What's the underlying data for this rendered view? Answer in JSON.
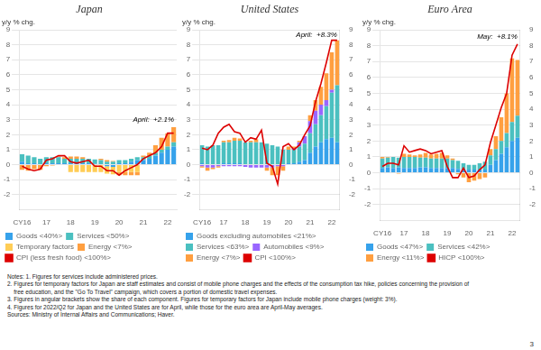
{
  "chart_data": [
    {
      "type": "bar",
      "stacked": true,
      "title": "Japan",
      "y_label": "y/y % chg.",
      "annotation": "April:  +2.1%",
      "categories": [
        "CY16",
        null,
        null,
        null,
        "17",
        null,
        null,
        null,
        "18",
        null,
        null,
        null,
        "19",
        null,
        null,
        null,
        "20",
        null,
        null,
        null,
        "21",
        null,
        null,
        null,
        "22",
        null
      ],
      "ylim": [
        -3,
        9
      ],
      "yticks": [
        -2,
        -1,
        0,
        1,
        2,
        3,
        4,
        5,
        6,
        7,
        8,
        9
      ],
      "grid": true,
      "legend": "bottom",
      "series": [
        {
          "name": "Goods <40%>",
          "color": "#36a2eb",
          "values": [
            0.2,
            0.1,
            0.1,
            0.0,
            0.1,
            0.1,
            0.1,
            0.1,
            0.1,
            0.1,
            0.1,
            0.1,
            0.05,
            0.0,
            -0.1,
            -0.15,
            0.1,
            0.1,
            0.2,
            0.3,
            0.3,
            0.4,
            0.6,
            0.8,
            1.0,
            1.2
          ]
        },
        {
          "name": "Services <50%>",
          "color": "#4bc0c0",
          "values": [
            0.5,
            0.5,
            0.4,
            0.4,
            0.4,
            0.4,
            0.4,
            0.3,
            0.3,
            0.3,
            0.3,
            0.3,
            0.3,
            0.3,
            0.2,
            0.2,
            0.2,
            0.2,
            0.2,
            0.2,
            0.2,
            0.2,
            0.2,
            0.2,
            0.2,
            0.3
          ]
        },
        {
          "name": "Temporary factors",
          "color": "#ffcd56",
          "values": [
            0.0,
            0.0,
            0.0,
            0.0,
            0.0,
            0.0,
            0.0,
            0.0,
            -0.5,
            -0.5,
            -0.5,
            -0.5,
            -0.5,
            -0.5,
            -0.5,
            -0.5,
            -0.5,
            -0.5,
            -0.5,
            -0.5,
            0.0,
            0.0,
            0.0,
            0.0,
            0.0,
            0.0
          ]
        },
        {
          "name": "Energy <7%>",
          "color": "#ff9f40",
          "values": [
            -0.35,
            -0.4,
            -0.3,
            -0.35,
            -0.1,
            -0.05,
            0.05,
            0.1,
            0.15,
            0.15,
            0.1,
            0.0,
            0.0,
            0.1,
            0.1,
            0.05,
            -0.2,
            -0.2,
            -0.2,
            -0.2,
            0.1,
            0.2,
            0.5,
            0.8,
            0.9,
            1.0
          ]
        },
        {
          "name": "CPI (less fresh food) <100%>",
          "type": "line",
          "color": "#dd0000",
          "values": [
            -0.1,
            -0.3,
            -0.4,
            -0.3,
            0.3,
            0.4,
            0.6,
            0.6,
            0.2,
            0.1,
            0.2,
            0.3,
            -0.1,
            -0.1,
            -0.4,
            -0.4,
            -0.7,
            -0.4,
            -0.2,
            0.0,
            0.4,
            0.6,
            0.8,
            1.2,
            2.1,
            2.1
          ]
        }
      ]
    },
    {
      "type": "bar",
      "stacked": true,
      "title": "United States",
      "y_label": "y/y % chg.",
      "annotation": "April:  +8.3%",
      "categories": [
        "CY16",
        null,
        null,
        null,
        "17",
        null,
        null,
        null,
        "18",
        null,
        null,
        null,
        "19",
        null,
        null,
        null,
        "20",
        null,
        null,
        null,
        "21",
        null,
        null,
        null,
        "22",
        null
      ],
      "ylim": [
        -3,
        9
      ],
      "yticks": [
        -2,
        -1,
        0,
        1,
        2,
        3,
        4,
        5,
        6,
        7,
        8,
        9
      ],
      "y2lim": [
        -3,
        9
      ],
      "y2ticks": [
        -2,
        -1,
        0,
        1,
        2,
        3,
        4,
        5,
        6,
        7,
        8,
        9
      ],
      "grid": true,
      "legend": "bottom",
      "series": [
        {
          "name": "Goods excluding automobiles\n<21%>",
          "color": "#36a2eb",
          "values": [
            0.1,
            0.0,
            0.0,
            0.0,
            0.1,
            0.1,
            0.1,
            0.1,
            0.0,
            0.0,
            0.0,
            0.0,
            0.0,
            0.0,
            0.0,
            0.0,
            0.1,
            0.1,
            0.2,
            0.3,
            0.8,
            1.2,
            1.5,
            1.7,
            1.8,
            1.5
          ]
        },
        {
          "name": "Services <63%>",
          "color": "#4bc0c0",
          "values": [
            1.2,
            1.2,
            1.3,
            1.3,
            1.4,
            1.4,
            1.5,
            1.5,
            1.5,
            1.5,
            1.5,
            1.5,
            1.4,
            1.3,
            1.2,
            1.0,
            0.9,
            0.9,
            1.0,
            1.1,
            1.3,
            1.5,
            1.8,
            2.2,
            3.0,
            3.8
          ]
        },
        {
          "name": "Automobiles <9%>",
          "color": "#9966ff",
          "values": [
            -0.1,
            -0.2,
            -0.2,
            -0.1,
            -0.1,
            -0.1,
            -0.1,
            -0.1,
            -0.15,
            -0.2,
            -0.2,
            -0.2,
            -0.2,
            -0.2,
            -0.1,
            -0.1,
            0.0,
            0.1,
            0.3,
            0.5,
            0.8,
            0.9,
            0.7,
            0.4,
            0.2,
            0.0
          ]
        },
        {
          "name": "Energy <7%>",
          "color": "#ff9f40",
          "values": [
            -0.1,
            -0.2,
            -0.1,
            -0.1,
            0.1,
            0.15,
            0.2,
            0.15,
            0.0,
            0.1,
            0.2,
            0.0,
            -0.2,
            -0.5,
            -0.6,
            -0.3,
            0.2,
            0.1,
            0.1,
            0.0,
            0.4,
            0.7,
            1.2,
            1.8,
            2.5,
            3.0
          ]
        },
        {
          "name": "CPI <100%>",
          "type": "line",
          "color": "#dd0000",
          "values": [
            1.1,
            1.0,
            1.3,
            2.1,
            2.5,
            2.7,
            2.2,
            2.1,
            1.5,
            1.8,
            1.7,
            2.3,
            0.1,
            -0.1,
            -1.3,
            1.2,
            1.4,
            1.0,
            1.3,
            2.0,
            2.6,
            4.2,
            5.4,
            6.8,
            8.3,
            8.3
          ]
        }
      ]
    },
    {
      "type": "bar",
      "stacked": true,
      "title": "Euro Area",
      "y_label": "y/y % chg.",
      "annotation": "May:  +8.1%",
      "categories": [
        "CY16",
        null,
        null,
        null,
        "17",
        null,
        null,
        null,
        "18",
        null,
        null,
        null,
        "19",
        null,
        null,
        null,
        "20",
        null,
        null,
        null,
        "21",
        null,
        null,
        null,
        "22",
        null
      ],
      "ylim": [
        -3,
        9
      ],
      "yticks": [
        -2,
        -1,
        0,
        1,
        2,
        3,
        4,
        5,
        6,
        7,
        8,
        9
      ],
      "y2lim": [
        -3,
        9
      ],
      "y2ticks": [
        -2,
        -1,
        0,
        1,
        2,
        3,
        4,
        5,
        6,
        7,
        8,
        9
      ],
      "grid": true,
      "legend": "bottom",
      "series": [
        {
          "name": "Goods <47%>",
          "color": "#36a2eb",
          "values": [
            0.3,
            0.35,
            0.3,
            0.35,
            0.3,
            0.3,
            0.3,
            0.35,
            0.35,
            0.3,
            0.3,
            0.3,
            0.3,
            0.3,
            0.25,
            0.2,
            0.2,
            0.2,
            0.2,
            0.2,
            0.5,
            0.8,
            1.2,
            1.6,
            2.0,
            2.2
          ]
        },
        {
          "name": "Services <42%>",
          "color": "#4bc0c0",
          "values": [
            0.6,
            0.6,
            0.7,
            0.6,
            0.7,
            0.7,
            0.7,
            0.6,
            0.6,
            0.6,
            0.6,
            0.6,
            0.6,
            0.5,
            0.5,
            0.4,
            0.3,
            0.3,
            0.4,
            0.5,
            0.6,
            0.7,
            0.8,
            0.9,
            1.2,
            1.4
          ]
        },
        {
          "name": "Energy <11%>",
          "color": "#ff9f40",
          "values": [
            0.1,
            0.05,
            0.0,
            -0.05,
            0.2,
            0.15,
            0.1,
            0.2,
            0.3,
            0.25,
            0.3,
            0.35,
            0.2,
            0.1,
            -0.1,
            -0.3,
            -0.6,
            -0.5,
            -0.4,
            -0.3,
            0.4,
            0.8,
            1.5,
            2.5,
            4.0,
            3.5
          ]
        },
        {
          "name": "HICP <100%>",
          "type": "line",
          "color": "#dd0000",
          "values": [
            0.4,
            0.6,
            0.6,
            0.5,
            1.7,
            1.3,
            1.4,
            1.5,
            1.4,
            1.2,
            1.3,
            1.4,
            0.4,
            -0.3,
            -0.3,
            0.3,
            -0.3,
            -0.2,
            0.2,
            0.5,
            1.9,
            3.0,
            4.1,
            5.0,
            7.4,
            8.1
          ]
        }
      ]
    }
  ],
  "footnote_lines": [
    "Notes: 1. Figures for services include administered prices.",
    "2. Figures for temporary factors for Japan are staff estimates and consist of mobile phone charges and the effects of the consumption tax hike, policies concerning the provision of",
    "    free education, and the \"Go To Travel\" campaign, which covers a portion of domestic travel expenses.",
    "3. Figures in angular brackets show the share of each component. Figures for temporary factors for Japan include mobile phone charges (weight: 3%).",
    "4. Figures for 2022/Q2 for Japan and the United States are for April, while those for the euro area are April-May averages.",
    "Sources: Ministry of Internal Affairs and Communications; Haver."
  ],
  "page_number": "3"
}
